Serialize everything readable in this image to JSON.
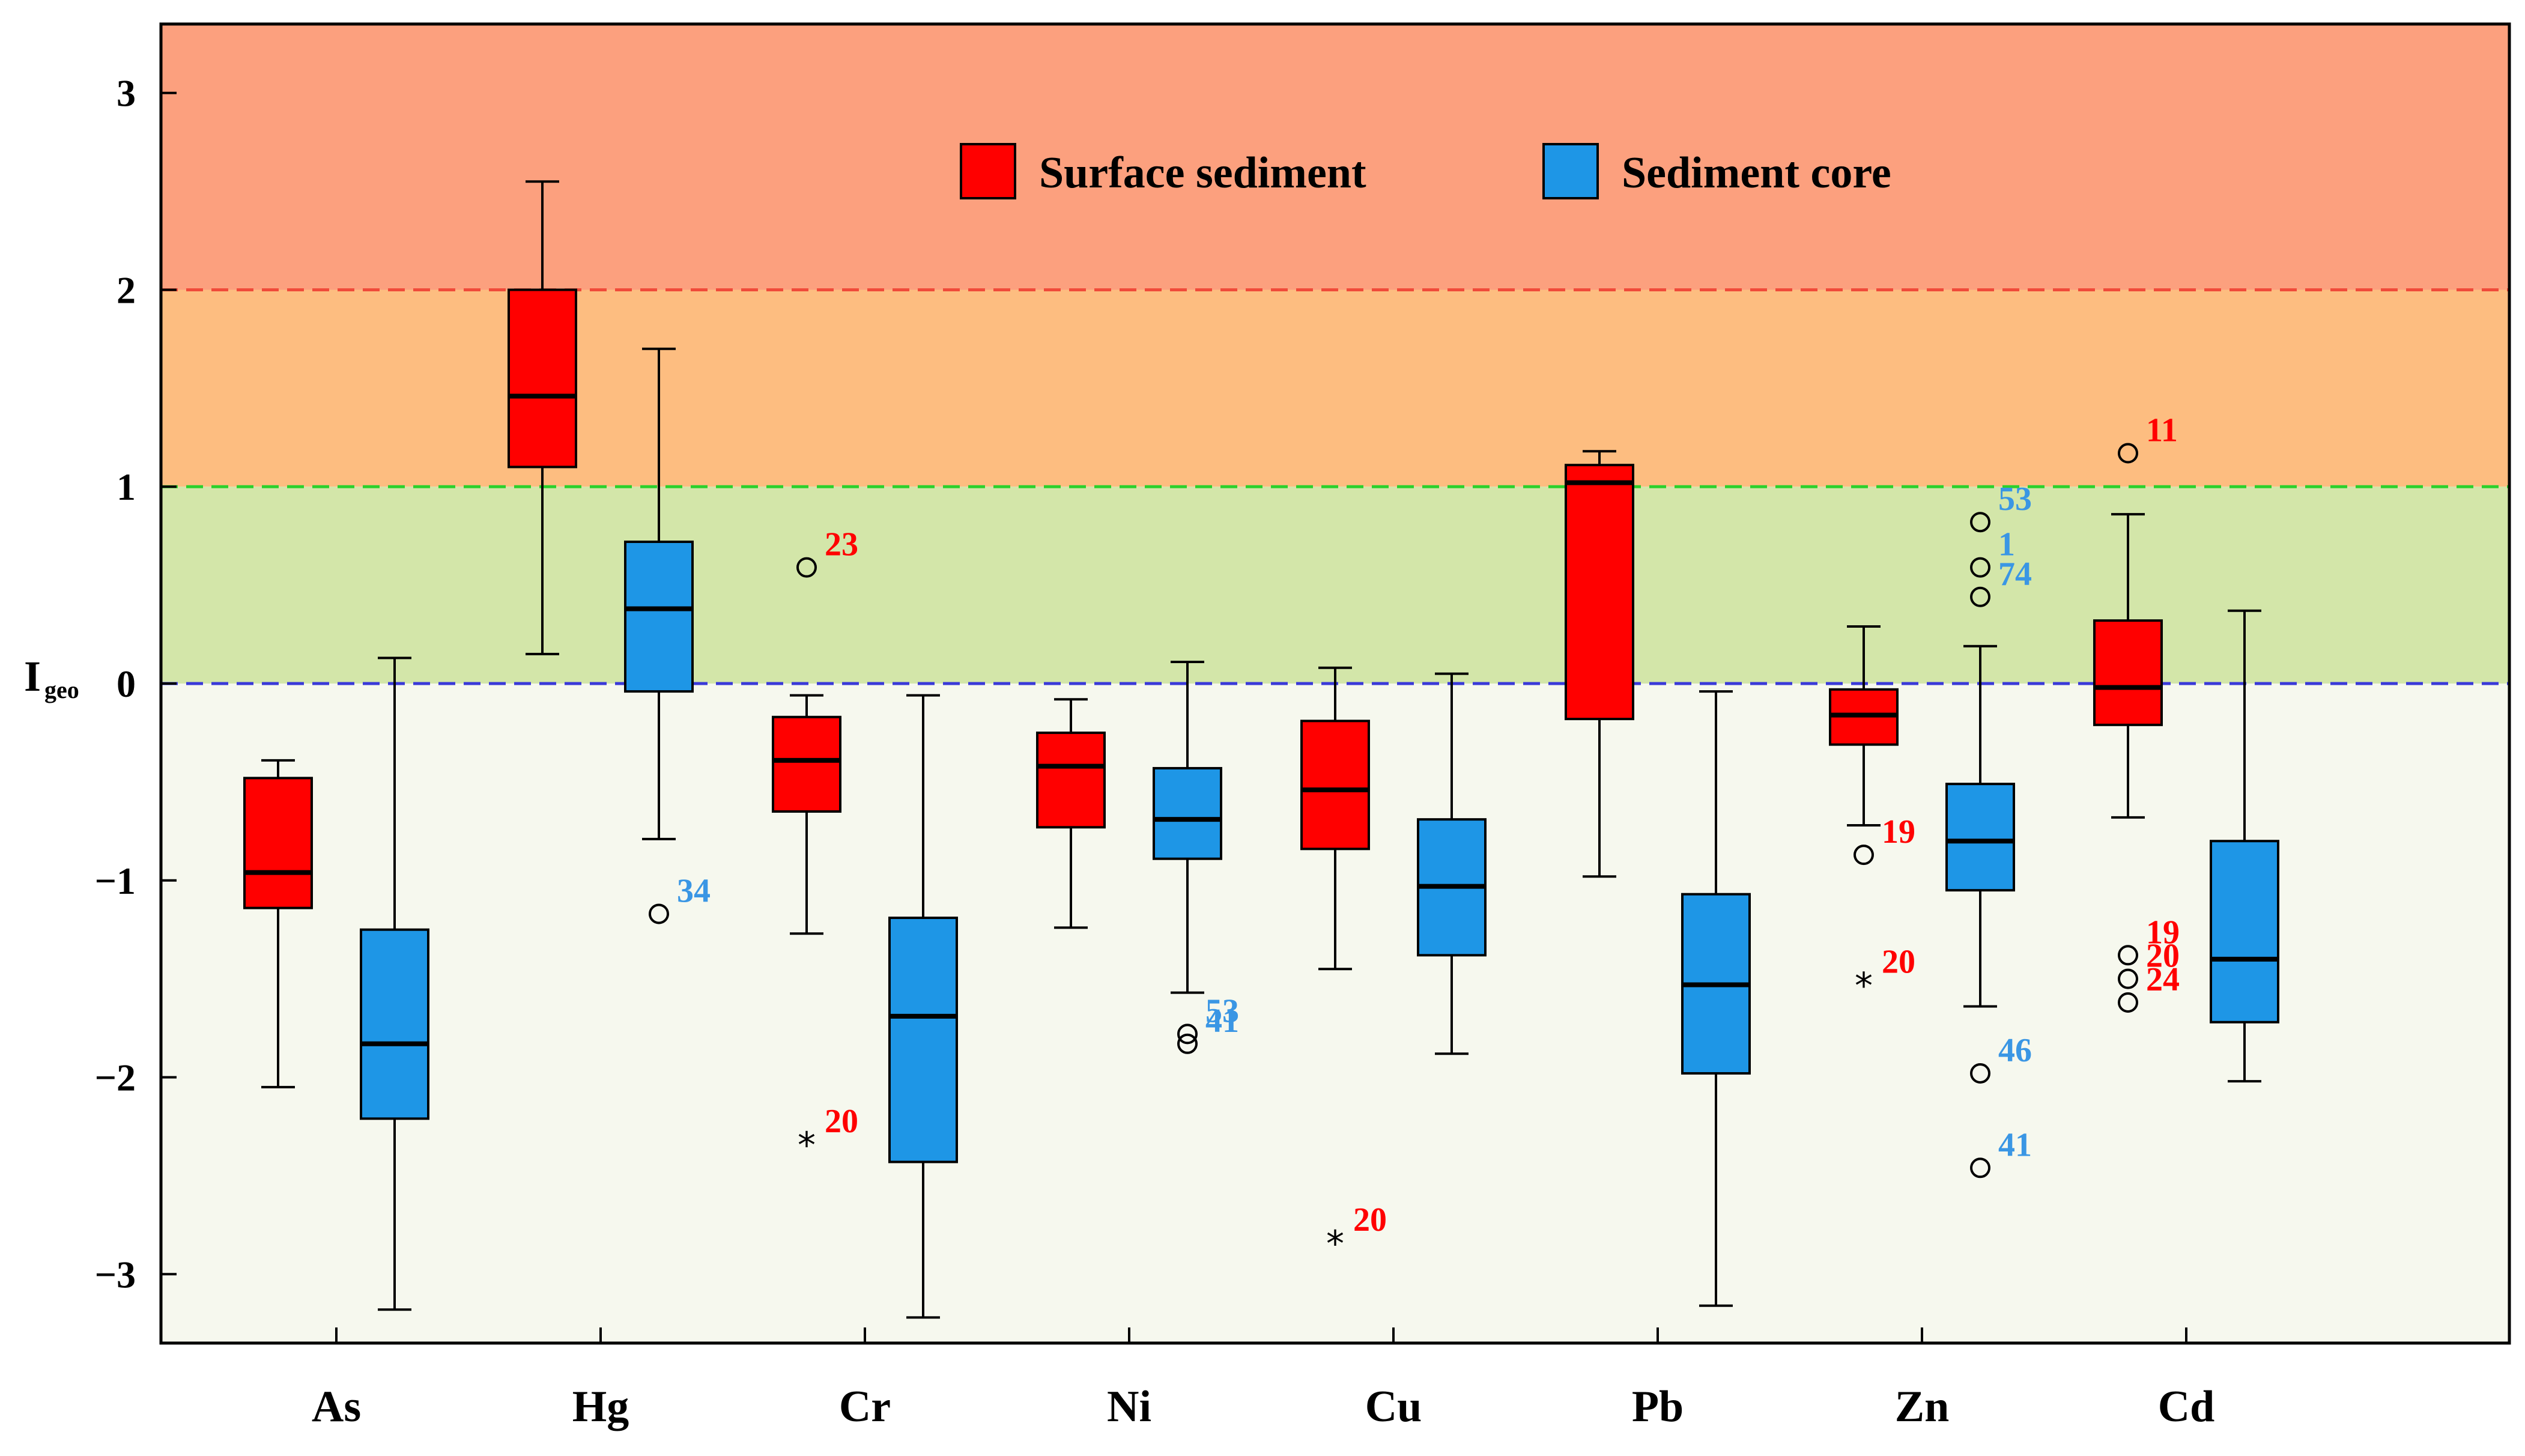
{
  "chart_data": {
    "type": "box",
    "ylabel": "I",
    "ylabel_subscript": "geo",
    "ylim": [
      -3.35,
      3.35
    ],
    "yticks": [
      3,
      2,
      1,
      0,
      -1,
      -2,
      -3
    ],
    "ytick_labels": [
      "3",
      "2",
      "1",
      "0",
      "−1",
      "−2",
      "−3"
    ],
    "categories": [
      "As",
      "Hg",
      "Cr",
      "Ni",
      "Cu",
      "Pb",
      "Zn",
      "Cd"
    ],
    "grid": false,
    "legend_position": "top-center",
    "colors": {
      "surface": "#ff0000",
      "core": "#1e96e6",
      "band_high": "#fca07e",
      "band_mid": "#fdbd80",
      "band_low": "#d3e6a9",
      "band_bottom": "#f6f8ee",
      "line_2": "#f04a3a",
      "line_1": "#2cd12c",
      "line_0": "#3a3ad8",
      "label_surface": "#ff0000",
      "label_core": "#3a96e4"
    },
    "bands": [
      {
        "from": 2,
        "to": 3.35,
        "color": "#fca07e"
      },
      {
        "from": 1,
        "to": 2,
        "color": "#fdbd80"
      },
      {
        "from": 0,
        "to": 1,
        "color": "#d3e6a9"
      },
      {
        "from": -3.35,
        "to": 0,
        "color": "#f6f8ee"
      }
    ],
    "reference_lines": [
      {
        "y": 2,
        "color": "#f04a3a"
      },
      {
        "y": 1,
        "color": "#2cd12c"
      },
      {
        "y": 0,
        "color": "#3a3ad8"
      }
    ],
    "legend": [
      {
        "label": "Surface sediment",
        "color": "#ff0000"
      },
      {
        "label": "Sediment core",
        "color": "#1e96e6"
      }
    ],
    "series": [
      {
        "name": "Surface sediment",
        "color": "#ff0000",
        "boxes": [
          {
            "category": "As",
            "whisker_low": -2.05,
            "q1": -1.14,
            "median": -0.96,
            "q3": -0.48,
            "whisker_high": -0.39,
            "outliers": []
          },
          {
            "category": "Hg",
            "whisker_low": 0.15,
            "q1": 1.1,
            "median": 1.46,
            "q3": 2.0,
            "whisker_high": 2.55,
            "outliers": []
          },
          {
            "category": "Cr",
            "whisker_low": -1.27,
            "q1": -0.65,
            "median": -0.39,
            "q3": -0.17,
            "whisker_high": -0.06,
            "outliers": [
              {
                "value": 0.59,
                "marker": "circle",
                "label": "23"
              },
              {
                "value": -2.34,
                "marker": "star",
                "label": "20"
              }
            ]
          },
          {
            "category": "Ni",
            "whisker_low": -1.24,
            "q1": -0.73,
            "median": -0.42,
            "q3": -0.25,
            "whisker_high": -0.08,
            "outliers": []
          },
          {
            "category": "Cu",
            "whisker_low": -1.45,
            "q1": -0.84,
            "median": -0.54,
            "q3": -0.19,
            "whisker_high": 0.08,
            "outliers": [
              {
                "value": -2.84,
                "marker": "star",
                "label": "20"
              }
            ]
          },
          {
            "category": "Pb",
            "whisker_low": -0.98,
            "q1": -0.18,
            "median": 1.02,
            "q3": 1.11,
            "whisker_high": 1.18,
            "outliers": []
          },
          {
            "category": "Zn",
            "whisker_low": -0.72,
            "q1": -0.31,
            "median": -0.16,
            "q3": -0.03,
            "whisker_high": 0.29,
            "outliers": [
              {
                "value": -0.87,
                "marker": "circle",
                "label": "19"
              },
              {
                "value": -1.53,
                "marker": "star",
                "label": "20"
              }
            ]
          },
          {
            "category": "Cd",
            "whisker_low": -0.68,
            "q1": -0.21,
            "median": -0.02,
            "q3": 0.32,
            "whisker_high": 0.86,
            "outliers": [
              {
                "value": 1.17,
                "marker": "circle",
                "label": "11"
              },
              {
                "value": -1.38,
                "marker": "circle",
                "label": "19"
              },
              {
                "value": -1.5,
                "marker": "circle",
                "label": "20"
              },
              {
                "value": -1.62,
                "marker": "circle",
                "label": "24"
              }
            ]
          }
        ]
      },
      {
        "name": "Sediment core",
        "color": "#1e96e6",
        "boxes": [
          {
            "category": "As",
            "whisker_low": -3.18,
            "q1": -2.21,
            "median": -1.83,
            "q3": -1.25,
            "whisker_high": 0.13,
            "outliers": []
          },
          {
            "category": "Hg",
            "whisker_low": -0.79,
            "q1": -0.04,
            "median": 0.38,
            "q3": 0.72,
            "whisker_high": 1.7,
            "outliers": [
              {
                "value": -1.17,
                "marker": "circle",
                "label": "34"
              }
            ]
          },
          {
            "category": "Cr",
            "whisker_low": -3.22,
            "q1": -2.43,
            "median": -1.69,
            "q3": -1.19,
            "whisker_high": -0.06,
            "outliers": []
          },
          {
            "category": "Ni",
            "whisker_low": -1.57,
            "q1": -0.89,
            "median": -0.69,
            "q3": -0.43,
            "whisker_high": 0.11,
            "outliers": [
              {
                "value": -1.78,
                "marker": "circle",
                "label": "53"
              },
              {
                "value": -1.83,
                "marker": "circle",
                "label": "41"
              }
            ]
          },
          {
            "category": "Cu",
            "whisker_low": -1.88,
            "q1": -1.38,
            "median": -1.03,
            "q3": -0.69,
            "whisker_high": 0.05,
            "outliers": []
          },
          {
            "category": "Pb",
            "whisker_low": -3.16,
            "q1": -1.98,
            "median": -1.53,
            "q3": -1.07,
            "whisker_high": -0.04,
            "outliers": []
          },
          {
            "category": "Zn",
            "whisker_low": -1.64,
            "q1": -1.05,
            "median": -0.8,
            "q3": -0.51,
            "whisker_high": 0.19,
            "outliers": [
              {
                "value": 0.82,
                "marker": "circle",
                "label": "53"
              },
              {
                "value": 0.59,
                "marker": "circle",
                "label": "1"
              },
              {
                "value": 0.44,
                "marker": "circle",
                "label": "74"
              },
              {
                "value": -1.98,
                "marker": "circle",
                "label": "46"
              },
              {
                "value": -2.46,
                "marker": "circle",
                "label": "41"
              }
            ]
          },
          {
            "category": "Cd",
            "whisker_low": -2.02,
            "q1": -1.72,
            "median": -1.4,
            "q3": -0.8,
            "whisker_high": 0.37,
            "outliers": []
          }
        ]
      }
    ]
  }
}
